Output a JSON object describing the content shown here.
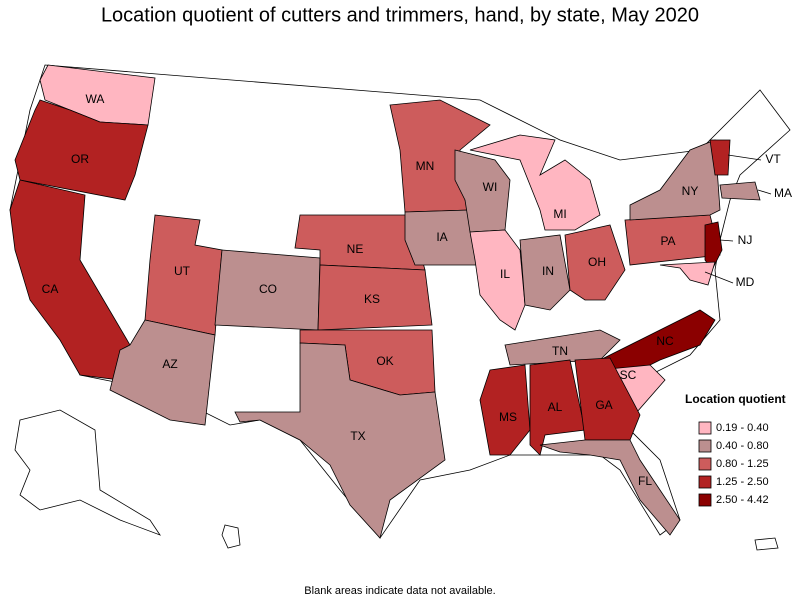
{
  "title": "Location quotient of cutters and trimmers, hand, by state, May 2020",
  "footnote": "Blank areas indicate data not available.",
  "legend": {
    "title": "Location quotient",
    "items": [
      {
        "label": "0.19 - 0.40",
        "color": "#ffb6c1"
      },
      {
        "label": "0.40 - 0.80",
        "color": "#bc8f8f"
      },
      {
        "label": "0.80 - 1.25",
        "color": "#cd5c5c"
      },
      {
        "label": "1.25 - 2.50",
        "color": "#b22222"
      },
      {
        "label": "2.50 - 4.42",
        "color": "#8b0000"
      }
    ]
  },
  "states": [
    {
      "label": "WA",
      "color": "#ffb6c1"
    },
    {
      "label": "OR",
      "color": "#b22222"
    },
    {
      "label": "CA",
      "color": "#b22222"
    },
    {
      "label": "UT",
      "color": "#cd5c5c"
    },
    {
      "label": "AZ",
      "color": "#bc8f8f"
    },
    {
      "label": "CO",
      "color": "#bc8f8f"
    },
    {
      "label": "NE",
      "color": "#cd5c5c"
    },
    {
      "label": "KS",
      "color": "#cd5c5c"
    },
    {
      "label": "OK",
      "color": "#cd5c5c"
    },
    {
      "label": "TX",
      "color": "#bc8f8f"
    },
    {
      "label": "MN",
      "color": "#cd5c5c"
    },
    {
      "label": "IA",
      "color": "#bc8f8f"
    },
    {
      "label": "WI",
      "color": "#bc8f8f"
    },
    {
      "label": "IL",
      "color": "#ffb6c1"
    },
    {
      "label": "MI",
      "color": "#ffb6c1"
    },
    {
      "label": "IN",
      "color": "#bc8f8f"
    },
    {
      "label": "OH",
      "color": "#cd5c5c"
    },
    {
      "label": "PA",
      "color": "#cd5c5c"
    },
    {
      "label": "NY",
      "color": "#bc8f8f"
    },
    {
      "label": "VT",
      "color": "#b22222"
    },
    {
      "label": "MA",
      "color": "#bc8f8f"
    },
    {
      "label": "NJ",
      "color": "#8b0000"
    },
    {
      "label": "MD",
      "color": "#ffb6c1"
    },
    {
      "label": "NC",
      "color": "#8b0000"
    },
    {
      "label": "SC",
      "color": "#ffb6c1"
    },
    {
      "label": "TN",
      "color": "#bc8f8f"
    },
    {
      "label": "MS",
      "color": "#b22222"
    },
    {
      "label": "AL",
      "color": "#b22222"
    },
    {
      "label": "GA",
      "color": "#b22222"
    },
    {
      "label": "FL",
      "color": "#bc8f8f"
    }
  ]
}
